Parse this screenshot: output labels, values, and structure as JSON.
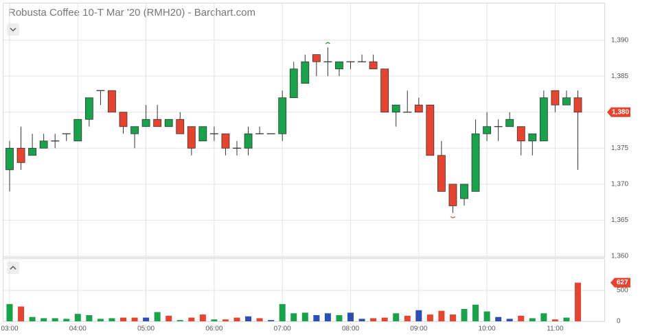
{
  "chart_data": {
    "type": "candlestick",
    "title": "Robusta Coffee 10-T Mar '20 (RMH20) - Barchart.com",
    "categories": [
      "03:00",
      null,
      null,
      null,
      null,
      null,
      "04:00",
      null,
      null,
      null,
      null,
      null,
      "05:00",
      null,
      null,
      null,
      null,
      null,
      "06:00",
      null,
      null,
      null,
      null,
      null,
      "07:00",
      null,
      null,
      null,
      null,
      null,
      "08:00",
      null,
      null,
      null,
      null,
      null,
      "09:00",
      null,
      null,
      null,
      null,
      null,
      "10:00",
      null,
      null,
      null,
      null,
      null,
      "11:00",
      null,
      null
    ],
    "open": [
      1372,
      1375,
      1374,
      1375,
      1376,
      1377,
      1376,
      1379,
      1383,
      1383,
      1380,
      1377,
      1378,
      1379,
      1378,
      1379,
      1378,
      1376,
      1377,
      1377,
      1375,
      1375,
      1377,
      1377,
      1377,
      1382,
      1384,
      1388,
      1387,
      1386,
      1387,
      1387,
      1387,
      1386,
      1380,
      1380,
      1381,
      1381,
      1374,
      1370,
      1368,
      1369,
      1377,
      1378,
      1378,
      1378,
      1376,
      1376,
      1383,
      1381,
      1382
    ],
    "high": [
      1376,
      1378,
      1377,
      1377,
      1377,
      1377,
      1379,
      1382,
      1383,
      1383,
      1380,
      1378,
      1381,
      1381,
      1379,
      1380,
      1378,
      1378,
      1378,
      1377,
      1376,
      1378,
      1378,
      1377,
      1383,
      1387,
      1388,
      1388,
      1389,
      1387,
      1387,
      1388,
      1388,
      1386,
      1381,
      1383,
      1382,
      1381,
      1376,
      1370,
      1370,
      1379,
      1380,
      1379,
      1380,
      1378,
      1377,
      1383,
      1383,
      1383,
      1383
    ],
    "low": [
      1369,
      1372,
      1374,
      1375,
      1375,
      1376,
      1376,
      1378,
      1381,
      1380,
      1377,
      1375,
      1378,
      1378,
      1378,
      1377,
      1374,
      1376,
      1376,
      1374,
      1374,
      1374,
      1377,
      1377,
      1376,
      1382,
      1384,
      1385,
      1385,
      1385,
      1386,
      1387,
      1386,
      1380,
      1378,
      1380,
      1380,
      1374,
      1369,
      1366,
      1367,
      1369,
      1376,
      1376,
      1378,
      1374,
      1374,
      1376,
      1380,
      1381,
      1372
    ],
    "close": [
      1375,
      1373,
      1375,
      1376,
      1376,
      1377,
      1379,
      1382,
      1383,
      1380,
      1378,
      1378,
      1379,
      1378,
      1379,
      1377,
      1375,
      1378,
      1377,
      1375,
      1375,
      1377,
      1377,
      1377,
      1382,
      1386,
      1387,
      1387,
      1387,
      1387,
      1387,
      1387,
      1386,
      1380,
      1381,
      1380,
      1380,
      1374,
      1369,
      1367,
      1370,
      1377,
      1378,
      1378,
      1379,
      1376,
      1377,
      1382,
      1381,
      1382,
      1380
    ],
    "up_color": "#16a34a",
    "down_color": "#e8432e",
    "ylim": [
      1360,
      1395.1
    ],
    "yticks": [
      {
        "value": 1360,
        "label": "1,360"
      },
      {
        "value": 1365,
        "label": "1,365"
      },
      {
        "value": 1370,
        "label": "1,370"
      },
      {
        "value": 1375,
        "label": "1,375"
      },
      {
        "value": 1380,
        "label": "1,380"
      },
      {
        "value": 1385,
        "label": "1,385"
      },
      {
        "value": 1390,
        "label": "1,390"
      }
    ],
    "last_price": {
      "value": 1380,
      "label": "1,380"
    },
    "grid": true,
    "volume": {
      "values": [
        280,
        240,
        70,
        50,
        50,
        40,
        120,
        100,
        40,
        50,
        60,
        60,
        60,
        150,
        90,
        20,
        60,
        110,
        30,
        30,
        60,
        80,
        50,
        20,
        280,
        130,
        140,
        100,
        130,
        100,
        140,
        40,
        50,
        60,
        130,
        90,
        180,
        110,
        170,
        110,
        200,
        270,
        160,
        70,
        40,
        90,
        50,
        130,
        30,
        60,
        627
      ],
      "colors": [
        "#16a34a",
        "#e8432e",
        "#16a34a",
        "#16a34a",
        "#16a34a",
        "#16a34a",
        "#16a34a",
        "#16a34a",
        "#16a34a",
        "#16a34a",
        "#e8432e",
        "#e8432e",
        "#2b4fb5",
        "#16a34a",
        "#e8432e",
        "#16a34a",
        "#e8432e",
        "#e8432e",
        "#16a34a",
        "#e8432e",
        "#e8432e",
        "#2b4fb5",
        "#e8432e",
        "#2b4fb5",
        "#16a34a",
        "#16a34a",
        "#16a34a",
        "#2b4fb5",
        "#2b4fb5",
        "#16a34a",
        "#2b4fb5",
        "#2b4fb5",
        "#e8432e",
        "#e8432e",
        "#16a34a",
        "#e8432e",
        "#2b4fb5",
        "#e8432e",
        "#e8432e",
        "#e8432e",
        "#16a34a",
        "#16a34a",
        "#16a34a",
        "#2b4fb5",
        "#2b4fb5",
        "#e8432e",
        "#16a34a",
        "#16a34a",
        "#e8432e",
        "#16a34a",
        "#e8432e"
      ],
      "ylim": [
        0,
        1000
      ],
      "yticks": [
        0,
        500
      ]
    }
  }
}
